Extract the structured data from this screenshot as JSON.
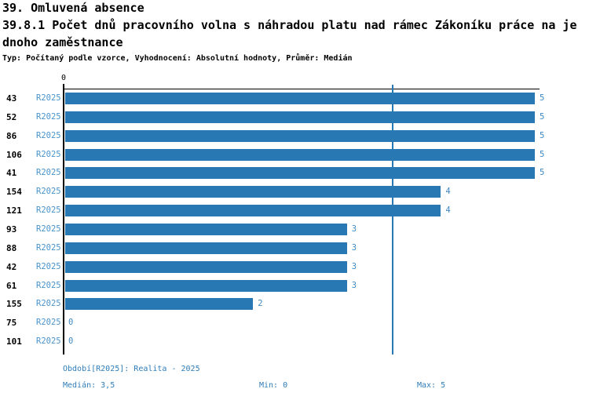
{
  "header": {
    "title": "39. Omluvená absence",
    "subtitle_line1": "39.8.1 Počet dnů pracovního volna s náhradou platu nad rámec Zákoníku práce na je",
    "subtitle_line2": "dnoho zaměstnance",
    "meta": "Typ: Počítaný podle vzorce, Vyhodnocení: Absolutní hodnoty, Průměr: Medián"
  },
  "chart_data": {
    "type": "bar",
    "orientation": "horizontal",
    "title": "39.8.1 Počet dnů pracovního volna s náhradou platu nad rámec Zákoníku práce na jednoho zaměstnance",
    "categories": [
      "43",
      "52",
      "86",
      "106",
      "41",
      "154",
      "121",
      "93",
      "88",
      "42",
      "61",
      "155",
      "75",
      "101"
    ],
    "series_label": "R2025",
    "values": [
      5,
      5,
      5,
      5,
      5,
      4,
      4,
      3,
      3,
      3,
      3,
      2,
      0,
      0
    ],
    "xlim": [
      0,
      5
    ],
    "axis_zero_label": "0",
    "median": 3.5,
    "grid": false,
    "legend": "none",
    "bar_color": "#2878b4",
    "median_line_color": "#2878b4",
    "series_label_color": "#4a94cc",
    "value_label_color": "#3e89c4"
  },
  "footer": {
    "period": "Období[R2025]: Realita - 2025",
    "median": "Medián: 3,5",
    "min": "Min: 0",
    "max": "Max: 5"
  }
}
